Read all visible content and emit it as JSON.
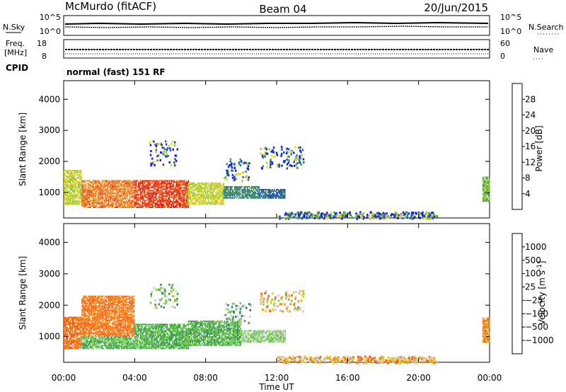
{
  "header": {
    "station": "McMurdo (fitACF)",
    "beam": "Beam 04",
    "date": "20/Jun/2015"
  },
  "noise_panel": {
    "left_label": "N.Sky",
    "right_label": "N.Search",
    "left_ticks": [
      "10^5",
      "10^0"
    ],
    "right_ticks": [
      "10^5",
      "10^0"
    ]
  },
  "freq_panel": {
    "left_label_1": "Freq.",
    "left_label_2": "[MHz]",
    "right_label": "Nave",
    "left_ticks": [
      "18",
      "8"
    ],
    "right_ticks": [
      "60",
      "0"
    ]
  },
  "cpid": {
    "label": "CPID",
    "mode": "normal (fast) 151 RF"
  },
  "xaxis": {
    "label": "Time UT",
    "ticks": [
      "00:00",
      "04:00",
      "08:00",
      "12:00",
      "16:00",
      "20:00",
      "00:00"
    ]
  },
  "chart_data": [
    {
      "type": "heatmap",
      "title": "",
      "xlabel": "",
      "ylabel": "Slant Range [km]",
      "xlim": [
        0,
        24
      ],
      "ylim": [
        180,
        4600
      ],
      "yticks": [
        "1000",
        "2000",
        "3000",
        "4000"
      ],
      "colorbar": {
        "label": "Power [dB]",
        "ticks": [
          "4",
          "8",
          "12",
          "16",
          "20",
          "24",
          "28"
        ],
        "range": [
          0,
          30
        ],
        "colors": [
          "#0a1ce6",
          "#1e46b4",
          "#2a6e8c",
          "#3c9650",
          "#96c83c",
          "#f0d228",
          "#f0a01e",
          "#f06414",
          "#e61414"
        ]
      },
      "regions": [
        {
          "t0": 0.0,
          "t1": 1.0,
          "r0": 600,
          "r1": 1700,
          "level": 0.55
        },
        {
          "t0": 1.0,
          "t1": 4.0,
          "r0": 500,
          "r1": 1400,
          "level": 0.8
        },
        {
          "t0": 4.0,
          "t1": 7.0,
          "r0": 500,
          "r1": 1400,
          "level": 0.88
        },
        {
          "t0": 7.0,
          "t1": 9.0,
          "r0": 600,
          "r1": 1300,
          "level": 0.55
        },
        {
          "t0": 9.0,
          "t1": 11.0,
          "r0": 800,
          "r1": 1200,
          "level": 0.35
        },
        {
          "t0": 11.0,
          "t1": 12.5,
          "r0": 800,
          "r1": 1100,
          "level": 0.25
        },
        {
          "t0": 23.6,
          "t1": 24.0,
          "r0": 700,
          "r1": 1500,
          "level": 0.45
        }
      ],
      "scatter_regions": [
        {
          "t0": 4.8,
          "t1": 6.4,
          "r0": 1900,
          "r1": 2700,
          "level": 0.3
        },
        {
          "t0": 9.0,
          "t1": 10.5,
          "r0": 1400,
          "r1": 2100,
          "level": 0.25
        },
        {
          "t0": 11.0,
          "t1": 13.5,
          "r0": 1800,
          "r1": 2500,
          "level": 0.2
        },
        {
          "t0": 12.0,
          "t1": 21.0,
          "r0": 180,
          "r1": 400,
          "level": 0.3
        }
      ]
    },
    {
      "type": "heatmap",
      "title": "",
      "xlabel": "Time UT",
      "ylabel": "Slant Range [km]",
      "xlim": [
        0,
        24
      ],
      "ylim": [
        180,
        4600
      ],
      "yticks": [
        "1000",
        "2000",
        "3000",
        "4000"
      ],
      "colorbar": {
        "label": "Velocity [m s^-1]",
        "ticks": [
          "1000",
          "500",
          "100",
          "25",
          "−25",
          "−100",
          "−500",
          "−1000"
        ],
        "range": [
          -1200,
          1200
        ],
        "colors": [
          "#1e3c9c",
          "#2a6e8c",
          "#3c9650",
          "#6fd24a",
          "#c8c8c8",
          "#f0c81e",
          "#f08c14",
          "#f05a14",
          "#e61414"
        ]
      },
      "regions": [
        {
          "t0": 0.0,
          "t1": 1.0,
          "r0": 600,
          "r1": 1600,
          "level": -0.55
        },
        {
          "t0": 1.0,
          "t1": 4.0,
          "r0": 1000,
          "r1": 2300,
          "level": -0.55
        },
        {
          "t0": 1.0,
          "t1": 4.0,
          "r0": 600,
          "r1": 1000,
          "level": 0.35
        },
        {
          "t0": 4.0,
          "t1": 7.0,
          "r0": 600,
          "r1": 1400,
          "level": 0.35
        },
        {
          "t0": 7.0,
          "t1": 10.0,
          "r0": 700,
          "r1": 1500,
          "level": 0.35
        },
        {
          "t0": 10.0,
          "t1": 12.5,
          "r0": 800,
          "r1": 1200,
          "level": 0.15
        },
        {
          "t0": 23.6,
          "t1": 24.0,
          "r0": 800,
          "r1": 1600,
          "level": -0.5
        }
      ],
      "scatter_regions": [
        {
          "t0": 4.8,
          "t1": 6.4,
          "r0": 1900,
          "r1": 2700,
          "level": 0.2
        },
        {
          "t0": 9.0,
          "t1": 10.5,
          "r0": 1400,
          "r1": 2100,
          "level": 0.3
        },
        {
          "t0": 11.0,
          "t1": 13.5,
          "r0": 1800,
          "r1": 2500,
          "level": -0.2
        },
        {
          "t0": 12.0,
          "t1": 21.0,
          "r0": 180,
          "r1": 400,
          "level": -0.3
        }
      ]
    }
  ]
}
